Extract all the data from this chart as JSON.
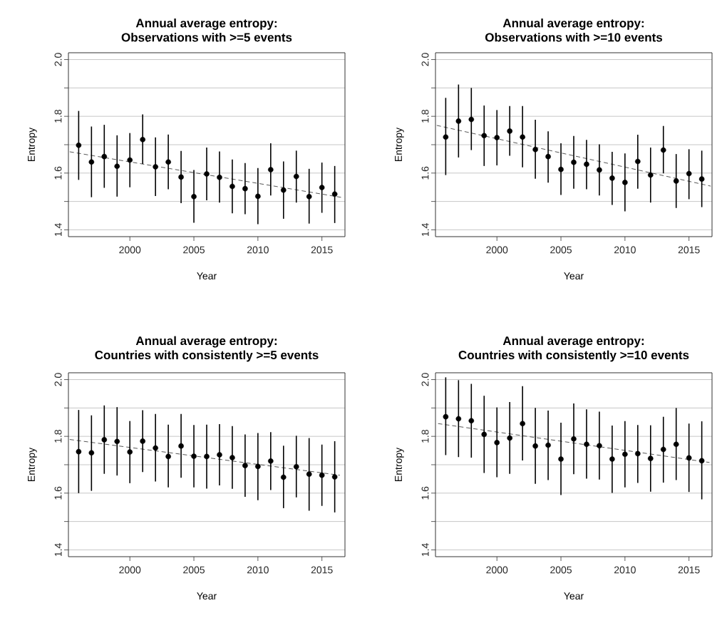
{
  "chart_data": [
    {
      "type": "scatter",
      "title": "Annual average entropy:",
      "subtitle": "Observations with >=5 events",
      "xlabel": "Year",
      "ylabel": "Entropy",
      "x": [
        1996,
        1997,
        1998,
        1999,
        2000,
        2001,
        2002,
        2003,
        2004,
        2005,
        2006,
        2007,
        2008,
        2009,
        2010,
        2011,
        2012,
        2013,
        2014,
        2015,
        2016
      ],
      "xlim": [
        1995.2,
        2016.8
      ],
      "ylim": [
        1.376,
        2.024
      ],
      "xticks": [
        2000,
        2005,
        2010,
        2015
      ],
      "yticks": [
        1.4,
        {
          "value": 1.5,
          "label": null
        },
        1.6,
        {
          "value": 1.7,
          "label": null
        },
        1.8,
        {
          "value": 1.9,
          "label": null
        },
        {
          "value": 2,
          "label": "2.0"
        }
      ],
      "grid": "y",
      "series": [
        {
          "color": "#000000",
          "marker": "circle",
          "values": [
            1.698,
            1.639,
            1.658,
            1.624,
            1.646,
            1.718,
            1.622,
            1.639,
            1.586,
            1.517,
            1.597,
            1.585,
            1.553,
            1.545,
            1.518,
            1.612,
            1.54,
            1.588,
            1.517,
            1.549,
            1.526
          ],
          "errors": [
            [
              1.576,
              1.819
            ],
            [
              1.515,
              1.764
            ],
            [
              1.548,
              1.77
            ],
            [
              1.517,
              1.733
            ],
            [
              1.55,
              1.741
            ],
            [
              1.632,
              1.807
            ],
            [
              1.519,
              1.726
            ],
            [
              1.543,
              1.736
            ],
            [
              1.494,
              1.678
            ],
            [
              1.425,
              1.611
            ],
            [
              1.504,
              1.69
            ],
            [
              1.496,
              1.676
            ],
            [
              1.458,
              1.648
            ],
            [
              1.455,
              1.635
            ],
            [
              1.42,
              1.618
            ],
            [
              1.521,
              1.705
            ],
            [
              1.439,
              1.641
            ],
            [
              1.496,
              1.679
            ],
            [
              1.422,
              1.615
            ],
            [
              1.46,
              1.637
            ],
            [
              1.424,
              1.625
            ]
          ]
        },
        {
          "type": "line",
          "color": "#555555",
          "marker": "none",
          "line_style": "dashed",
          "x": [
            1995.3,
            2016.7
          ],
          "values": [
            1.675,
            1.513
          ]
        }
      ]
    },
    {
      "type": "scatter",
      "title": "Annual average entropy:",
      "subtitle": "Observations with >=10 events",
      "xlabel": "Year",
      "ylabel": "Entropy",
      "x": [
        1996,
        1997,
        1998,
        1999,
        2000,
        2001,
        2002,
        2003,
        2004,
        2005,
        2006,
        2007,
        2008,
        2009,
        2010,
        2011,
        2012,
        2013,
        2014,
        2015,
        2016
      ],
      "xlim": [
        1995.2,
        2016.8
      ],
      "ylim": [
        1.376,
        2.024
      ],
      "xticks": [
        2000,
        2005,
        2010,
        2015
      ],
      "yticks": [
        1.4,
        {
          "value": 1.5,
          "label": null
        },
        1.6,
        {
          "value": 1.7,
          "label": null
        },
        1.8,
        {
          "value": 1.9,
          "label": null
        },
        {
          "value": 2,
          "label": "2.0"
        }
      ],
      "grid": "y",
      "series": [
        {
          "color": "#000000",
          "marker": "circle",
          "values": [
            1.727,
            1.783,
            1.789,
            1.732,
            1.725,
            1.748,
            1.727,
            1.683,
            1.658,
            1.613,
            1.638,
            1.631,
            1.611,
            1.582,
            1.567,
            1.641,
            1.593,
            1.681,
            1.572,
            1.598,
            1.579
          ],
          "errors": [
            [
              1.593,
              1.865
            ],
            [
              1.655,
              1.912
            ],
            [
              1.681,
              1.9
            ],
            [
              1.625,
              1.838
            ],
            [
              1.627,
              1.822
            ],
            [
              1.661,
              1.836
            ],
            [
              1.62,
              1.836
            ],
            [
              1.58,
              1.788
            ],
            [
              1.566,
              1.747
            ],
            [
              1.523,
              1.705
            ],
            [
              1.545,
              1.731
            ],
            [
              1.543,
              1.717
            ],
            [
              1.521,
              1.701
            ],
            [
              1.488,
              1.675
            ],
            [
              1.465,
              1.669
            ],
            [
              1.545,
              1.735
            ],
            [
              1.496,
              1.69
            ],
            [
              1.599,
              1.766
            ],
            [
              1.477,
              1.667
            ],
            [
              1.508,
              1.684
            ],
            [
              1.48,
              1.679
            ]
          ]
        },
        {
          "type": "line",
          "color": "#555555",
          "marker": "none",
          "line_style": "dashed",
          "x": [
            1995.3,
            2016.7
          ],
          "values": [
            1.768,
            1.554
          ]
        }
      ]
    },
    {
      "type": "scatter",
      "title": "Annual average entropy:",
      "subtitle": "Countries with consistently >=5 events",
      "xlabel": "Year",
      "ylabel": "Entropy",
      "x": [
        1996,
        1997,
        1998,
        1999,
        2000,
        2001,
        2002,
        2003,
        2004,
        2005,
        2006,
        2007,
        2008,
        2009,
        2010,
        2011,
        2012,
        2013,
        2014,
        2015,
        2016
      ],
      "xlim": [
        1995.2,
        2016.8
      ],
      "ylim": [
        1.376,
        2.024
      ],
      "xticks": [
        2000,
        2005,
        2010,
        2015
      ],
      "yticks": [
        1.4,
        {
          "value": 1.5,
          "label": null
        },
        1.6,
        {
          "value": 1.7,
          "label": null
        },
        1.8,
        {
          "value": 1.9,
          "label": null
        },
        {
          "value": 2,
          "label": "2.0"
        }
      ],
      "grid": "y",
      "series": [
        {
          "color": "#000000",
          "marker": "circle",
          "values": [
            1.746,
            1.742,
            1.788,
            1.782,
            1.745,
            1.783,
            1.759,
            1.729,
            1.766,
            1.73,
            1.729,
            1.735,
            1.725,
            1.697,
            1.694,
            1.713,
            1.656,
            1.693,
            1.667,
            1.663,
            1.657
          ],
          "errors": [
            [
              1.6,
              1.893
            ],
            [
              1.608,
              1.874
            ],
            [
              1.668,
              1.909
            ],
            [
              1.662,
              1.903
            ],
            [
              1.635,
              1.854
            ],
            [
              1.674,
              1.892
            ],
            [
              1.641,
              1.879
            ],
            [
              1.62,
              1.841
            ],
            [
              1.654,
              1.879
            ],
            [
              1.62,
              1.84
            ],
            [
              1.616,
              1.841
            ],
            [
              1.627,
              1.843
            ],
            [
              1.615,
              1.836
            ],
            [
              1.587,
              1.807
            ],
            [
              1.575,
              1.812
            ],
            [
              1.611,
              1.815
            ],
            [
              1.547,
              1.767
            ],
            [
              1.585,
              1.802
            ],
            [
              1.538,
              1.794
            ],
            [
              1.555,
              1.771
            ],
            [
              1.532,
              1.783
            ]
          ]
        },
        {
          "type": "line",
          "color": "#555555",
          "marker": "none",
          "line_style": "dashed",
          "x": [
            1995.3,
            2016.4
          ],
          "values": [
            1.789,
            1.663
          ]
        }
      ]
    },
    {
      "type": "scatter",
      "title": "Annual average entropy:",
      "subtitle": "Countries with consistently >=10 events",
      "xlabel": "Year",
      "ylabel": "Entropy",
      "x": [
        1996,
        1997,
        1998,
        1999,
        2000,
        2001,
        2002,
        2003,
        2004,
        2005,
        2006,
        2007,
        2008,
        2009,
        2010,
        2011,
        2012,
        2013,
        2014,
        2015,
        2016
      ],
      "xlim": [
        1995.2,
        2016.8
      ],
      "ylim": [
        1.376,
        2.024
      ],
      "xticks": [
        2000,
        2005,
        2010,
        2015
      ],
      "yticks": [
        1.4,
        {
          "value": 1.5,
          "label": null
        },
        1.6,
        {
          "value": 1.7,
          "label": null
        },
        1.8,
        {
          "value": 1.9,
          "label": null
        },
        {
          "value": 2,
          "label": "2.0"
        }
      ],
      "grid": "y",
      "series": [
        {
          "color": "#000000",
          "marker": "circle",
          "values": [
            1.869,
            1.862,
            1.855,
            1.807,
            1.778,
            1.794,
            1.845,
            1.766,
            1.769,
            1.72,
            1.791,
            1.772,
            1.767,
            1.72,
            1.737,
            1.739,
            1.722,
            1.754,
            1.772,
            1.724,
            1.714
          ],
          "errors": [
            [
              1.734,
              2.008
            ],
            [
              1.727,
              1.998
            ],
            [
              1.725,
              1.985
            ],
            [
              1.671,
              1.943
            ],
            [
              1.656,
              1.902
            ],
            [
              1.668,
              1.921
            ],
            [
              1.715,
              1.977
            ],
            [
              1.633,
              1.9
            ],
            [
              1.646,
              1.891
            ],
            [
              1.593,
              1.848
            ],
            [
              1.667,
              1.916
            ],
            [
              1.651,
              1.895
            ],
            [
              1.648,
              1.887
            ],
            [
              1.601,
              1.838
            ],
            [
              1.62,
              1.854
            ],
            [
              1.636,
              1.84
            ],
            [
              1.605,
              1.839
            ],
            [
              1.637,
              1.869
            ],
            [
              1.646,
              1.9
            ],
            [
              1.604,
              1.845
            ],
            [
              1.578,
              1.853
            ]
          ]
        },
        {
          "type": "line",
          "color": "#555555",
          "marker": "none",
          "line_style": "dashed",
          "x": [
            1995.4,
            2016.6
          ],
          "values": [
            1.845,
            1.708
          ]
        }
      ]
    }
  ]
}
